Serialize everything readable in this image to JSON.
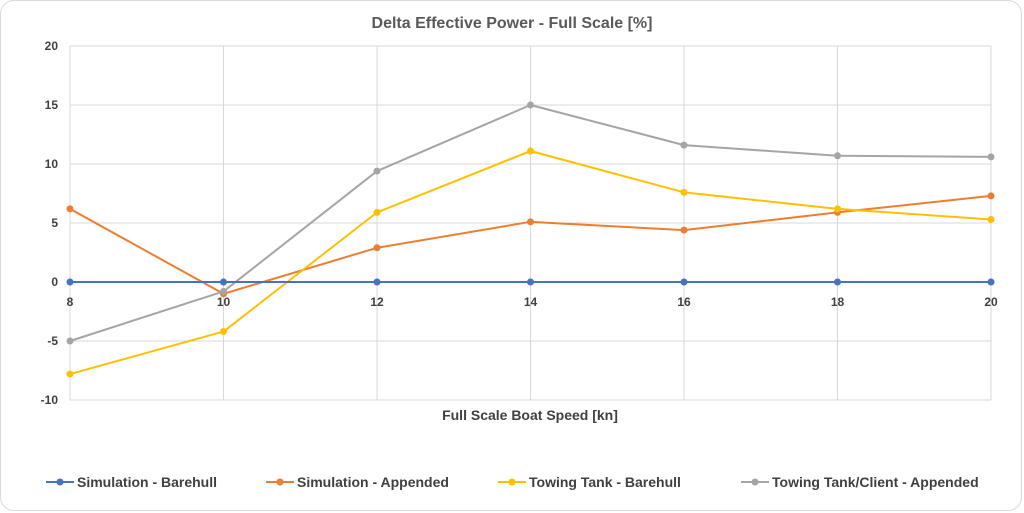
{
  "chart_data": {
    "type": "line",
    "title": "Delta Effective Power - Full Scale [%]",
    "xlabel": "Full Scale Boat Speed [kn]",
    "ylabel": "",
    "x": [
      8,
      10,
      12,
      14,
      16,
      18,
      20
    ],
    "x_tick_labels": [
      "8",
      "10",
      "12",
      "14",
      "16",
      "18",
      "20"
    ],
    "xlim": [
      8,
      20
    ],
    "ylim": [
      -10,
      20
    ],
    "y_ticks": [
      -10,
      -5,
      0,
      5,
      10,
      15,
      20
    ],
    "y_tick_labels": [
      "-10",
      "-5",
      "0",
      "5",
      "10",
      "15",
      "20"
    ],
    "grid": true,
    "legend_position": "bottom",
    "series": [
      {
        "name": "Simulation - Barehull",
        "color": "#4472C4",
        "values": [
          0,
          0,
          0,
          0,
          0,
          0,
          0
        ]
      },
      {
        "name": "Simulation - Appended",
        "color": "#ED7D31",
        "values": [
          6.2,
          -1,
          2.9,
          5.1,
          4.4,
          5.9,
          7.3
        ]
      },
      {
        "name": "Towing Tank - Barehull",
        "color": "#FFC000",
        "values": [
          -7.8,
          -4.2,
          5.9,
          11.1,
          7.6,
          6.2,
          5.3
        ]
      },
      {
        "name": "Towing Tank/Client - Appended",
        "color": "#A5A5A5",
        "values": [
          -5,
          -0.8,
          9.4,
          15,
          11.6,
          10.7,
          10.6
        ]
      }
    ]
  }
}
